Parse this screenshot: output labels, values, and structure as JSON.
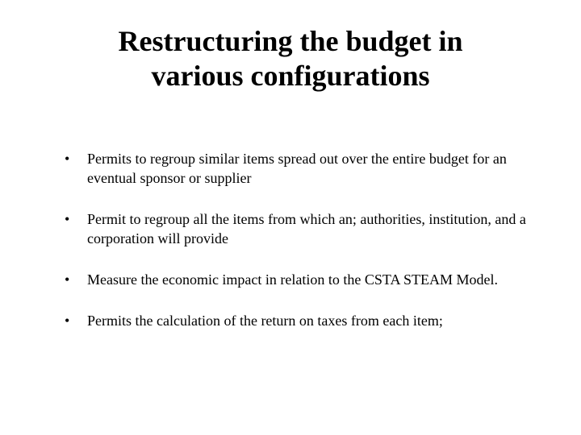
{
  "slide": {
    "title": "Restructuring the budget in various configurations",
    "bullets": [
      "Permits to regroup similar items spread out over the entire budget for an eventual sponsor or supplier",
      "Permit to regroup all the items from which an; authorities, institution, and a corporation will provide",
      "Measure the economic impact in relation to the CSTA STEAM Model.",
      "Permits the calculation of the return on taxes from each item;"
    ],
    "colors": {
      "background": "#ffffff",
      "text": "#000000"
    },
    "typography": {
      "title_fontsize": 36,
      "title_weight": "bold",
      "bullet_fontsize": 18,
      "font_family": "Times New Roman"
    }
  }
}
